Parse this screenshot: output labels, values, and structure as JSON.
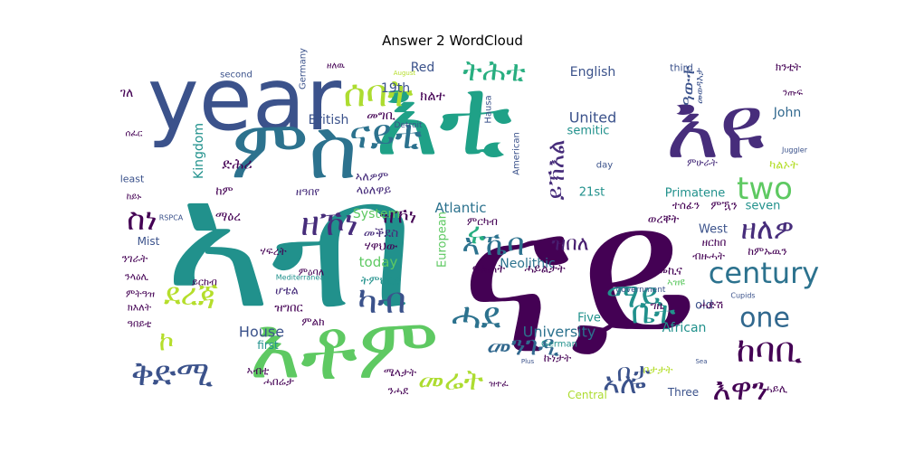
{
  "chart_data": {
    "type": "wordcloud",
    "title": "Answer 2 WordCloud",
    "colormap": "viridis",
    "background": "#ffffff",
    "words": [
      {
        "text": "ናይ",
        "weight": 1.0,
        "color": "#440154"
      },
      {
        "text": "ኣብ",
        "weight": 0.95,
        "color": "#21918c"
      },
      {
        "text": "እቲ",
        "weight": 0.55,
        "color": "#1fa187"
      },
      {
        "text": "year",
        "weight": 0.5,
        "color": "#3b528b"
      },
      {
        "text": "እዩ",
        "weight": 0.45,
        "color": "#472d7b"
      },
      {
        "text": "እቶም",
        "weight": 0.45,
        "color": "#5ec962"
      },
      {
        "text": "ምስ",
        "weight": 0.42,
        "color": "#2c728e"
      },
      {
        "text": "ቅድሚ",
        "weight": 0.22,
        "color": "#3b528b"
      },
      {
        "text": "ሰባት",
        "weight": 0.2,
        "color": "#addc30"
      },
      {
        "text": "ናይቲ",
        "weight": 0.2,
        "color": "#2c728e"
      },
      {
        "text": "ትሕቲ",
        "weight": 0.16,
        "color": "#28ae80"
      },
      {
        "text": "ዘኾነ",
        "weight": 0.16,
        "color": "#472d7b"
      },
      {
        "text": "ስነ",
        "weight": 0.16,
        "color": "#440154"
      },
      {
        "text": "two",
        "weight": 0.18,
        "color": "#5ec962"
      },
      {
        "text": "century",
        "weight": 0.18,
        "color": "#2c728e"
      },
      {
        "text": "ዘለዎ",
        "weight": 0.16,
        "color": "#472d7b"
      },
      {
        "text": "ደረጃ",
        "weight": 0.16,
        "color": "#b5de2b"
      },
      {
        "text": "ካብ",
        "weight": 0.18,
        "color": "#3b528b"
      },
      {
        "text": "ኣሎ",
        "weight": 0.16,
        "color": "#3b528b"
      },
      {
        "text": "ሓደ",
        "weight": 0.18,
        "color": "#2c728e"
      },
      {
        "text": "ማይ",
        "weight": 0.18,
        "color": "#21918c"
      },
      {
        "text": "ከባቢ",
        "weight": 0.17,
        "color": "#440154"
      },
      {
        "text": "እዋን",
        "weight": 0.15,
        "color": "#440154"
      },
      {
        "text": "መሬት",
        "weight": 0.15,
        "color": "#addc30"
      },
      {
        "text": "ቦታ",
        "weight": 0.14,
        "color": "#3b528b"
      },
      {
        "text": "ኣኼባ",
        "weight": 0.15,
        "color": "#2c728e"
      },
      {
        "text": "ቤት",
        "weight": 0.15,
        "color": "#21918c"
      },
      {
        "text": "ሩ",
        "weight": 0.14,
        "color": "#28ae80"
      },
      {
        "text": "one",
        "weight": 0.14,
        "color": "#31688e"
      },
      {
        "text": "መንገዲ",
        "weight": 0.13,
        "color": "#31688e"
      },
      {
        "text": "ኮ",
        "weight": 0.14,
        "color": "#b5de2b"
      },
      {
        "text": "ይኽእል",
        "weight": 0.13,
        "color": "#472d7b"
      },
      {
        "text": "ዓውተ",
        "weight": 0.1,
        "color": "#3b528b"
      },
      {
        "text": "ዝኾነ",
        "weight": 0.12,
        "color": "#440154"
      },
      {
        "text": "ዝበለ",
        "weight": 0.11,
        "color": "#481f70"
      },
      {
        "text": "University",
        "weight": 0.09,
        "color": "#2c728e"
      },
      {
        "text": "United",
        "weight": 0.09,
        "color": "#3b528b"
      },
      {
        "text": "House",
        "weight": 0.09,
        "color": "#3b528b"
      },
      {
        "text": "British",
        "weight": 0.08,
        "color": "#3b528b"
      },
      {
        "text": "Kingdom",
        "weight": 0.08,
        "color": "#21918c"
      },
      {
        "text": "European",
        "weight": 0.07,
        "color": "#5ec962"
      },
      {
        "text": "Atlantic",
        "weight": 0.07,
        "color": "#2c728e"
      },
      {
        "text": "today",
        "weight": 0.08,
        "color": "#5ec962"
      },
      {
        "text": "System",
        "weight": 0.07,
        "color": "#5ec962"
      },
      {
        "text": "Neolithic",
        "weight": 0.07,
        "color": "#2c728e"
      },
      {
        "text": "English",
        "weight": 0.07,
        "color": "#3b528b"
      },
      {
        "text": "semitic",
        "weight": 0.07,
        "color": "#21918c"
      },
      {
        "text": "John",
        "weight": 0.07,
        "color": "#31688e"
      },
      {
        "text": "Primatene",
        "weight": 0.06,
        "color": "#21918c"
      },
      {
        "text": "African",
        "weight": 0.06,
        "color": "#21918c"
      },
      {
        "text": "West",
        "weight": 0.06,
        "color": "#3b528b"
      },
      {
        "text": "seven",
        "weight": 0.06,
        "color": "#21918c"
      },
      {
        "text": "21st",
        "weight": 0.06,
        "color": "#21918c"
      },
      {
        "text": "19th",
        "weight": 0.06,
        "color": "#3b528b"
      },
      {
        "text": "Red",
        "weight": 0.06,
        "color": "#3b528b"
      },
      {
        "text": "Five",
        "weight": 0.06,
        "color": "#21918c"
      },
      {
        "text": "Three",
        "weight": 0.06,
        "color": "#3b528b"
      },
      {
        "text": "Central",
        "weight": 0.06,
        "color": "#addc30"
      },
      {
        "text": "old",
        "weight": 0.06,
        "color": "#3b528b"
      },
      {
        "text": "first",
        "weight": 0.06,
        "color": "#21918c"
      },
      {
        "text": "Mist",
        "weight": 0.06,
        "color": "#3b528b"
      },
      {
        "text": "German",
        "weight": 0.04,
        "color": "#21918c"
      },
      {
        "text": "third",
        "weight": 0.04,
        "color": "#3b528b"
      },
      {
        "text": "second",
        "weight": 0.04,
        "color": "#3b528b"
      },
      {
        "text": "least",
        "weight": 0.04,
        "color": "#3b528b"
      },
      {
        "text": "day",
        "weight": 0.03,
        "color": "#3b528b"
      },
      {
        "text": "Germany",
        "weight": 0.03,
        "color": "#3b528b"
      },
      {
        "text": "Hausa",
        "weight": 0.03,
        "color": "#3b528b"
      },
      {
        "text": "American",
        "weight": 0.03,
        "color": "#3b528b"
      },
      {
        "text": "Detroit",
        "weight": 0.03,
        "color": "#3b528b"
      },
      {
        "text": "government",
        "weight": 0.03,
        "color": "#3b528b"
      },
      {
        "text": "Mediterranean",
        "weight": 0.02,
        "color": "#21918c"
      },
      {
        "text": "RSPCA",
        "weight": 0.02,
        "color": "#3b528b"
      },
      {
        "text": "Juggler",
        "weight": 0.02,
        "color": "#3b528b"
      },
      {
        "text": "Cupids",
        "weight": 0.02,
        "color": "#3b528b"
      },
      {
        "text": "Plus",
        "weight": 0.02,
        "color": "#3b528b"
      },
      {
        "text": "Sea",
        "weight": 0.02,
        "color": "#3b528b"
      },
      {
        "text": "August",
        "weight": 0.02,
        "color": "#b5de2b"
      },
      {
        "text": "ክልተ",
        "weight": 0.07,
        "color": "#440154"
      },
      {
        "text": "መግቢ",
        "weight": 0.07,
        "color": "#440154"
      },
      {
        "text": "ድሕሪ",
        "weight": 0.07,
        "color": "#440154"
      },
      {
        "text": "ከም",
        "weight": 0.06,
        "color": "#440154"
      },
      {
        "text": "ማዕረ",
        "weight": 0.06,
        "color": "#440154"
      },
      {
        "text": "ዘዓበየ",
        "weight": 0.06,
        "color": "#472d7b"
      },
      {
        "text": "ላዕለዋይ",
        "weight": 0.06,
        "color": "#472d7b"
      },
      {
        "text": "ኣለዎም",
        "weight": 0.06,
        "color": "#472d7b"
      },
      {
        "text": "መቕደስ",
        "weight": 0.06,
        "color": "#472d7b"
      },
      {
        "text": "ሃዋህው",
        "weight": 0.06,
        "color": "#440154"
      },
      {
        "text": "ትምህርቲ",
        "weight": 0.06,
        "color": "#21918c"
      },
      {
        "text": "ፍልጠት",
        "weight": 0.06,
        "color": "#440154"
      },
      {
        "text": "ሓይልታት",
        "weight": 0.06,
        "color": "#440154"
      },
      {
        "text": "ምርካብ",
        "weight": 0.05,
        "color": "#440154"
      },
      {
        "text": "ሃፍረት",
        "weight": 0.05,
        "color": "#440154"
      },
      {
        "text": "ሆቴል",
        "weight": 0.05,
        "color": "#472d7b"
      },
      {
        "text": "ዝግበር",
        "weight": 0.05,
        "color": "#440154"
      },
      {
        "text": "ምልክ",
        "weight": 0.05,
        "color": "#440154"
      },
      {
        "text": "ኣብቲ",
        "weight": 0.05,
        "color": "#440154"
      },
      {
        "text": "ሓበሬታ",
        "weight": 0.05,
        "color": "#440154"
      },
      {
        "text": "ሜላታት",
        "weight": 0.05,
        "color": "#440154"
      },
      {
        "text": "ምዕባለ",
        "weight": 0.05,
        "color": "#440154"
      },
      {
        "text": "ምዃን",
        "weight": 0.05,
        "color": "#440154"
      },
      {
        "text": "መኪና",
        "weight": 0.05,
        "color": "#440154"
      },
      {
        "text": "ኣዝዩ",
        "weight": 0.05,
        "color": "#5ec962"
      },
      {
        "text": "ወረቐት",
        "weight": 0.05,
        "color": "#440154"
      },
      {
        "text": "ዘርከበ",
        "weight": 0.05,
        "color": "#440154"
      },
      {
        "text": "ብዙሓት",
        "weight": 0.05,
        "color": "#440154"
      },
      {
        "text": "ከምኡዉን",
        "weight": 0.05,
        "color": "#440154"
      },
      {
        "text": "ሓድሽ",
        "weight": 0.05,
        "color": "#440154"
      },
      {
        "text": "ሓይሊ",
        "weight": 0.05,
        "color": "#440154"
      },
      {
        "text": "ቦታታት",
        "weight": 0.05,
        "color": "#b5de2b"
      },
      {
        "text": "ኩነታት",
        "weight": 0.05,
        "color": "#440154"
      },
      {
        "text": "ካልኦት",
        "weight": 0.05,
        "color": "#b5de2b"
      },
      {
        "text": "ተሰፊን",
        "weight": 0.05,
        "color": "#440154"
      },
      {
        "text": "ምሁራት",
        "weight": 0.05,
        "color": "#472d7b"
      },
      {
        "text": "ንጡፍ",
        "weight": 0.05,
        "color": "#440154"
      },
      {
        "text": "ክንቲት",
        "weight": 0.05,
        "color": "#440154"
      },
      {
        "text": "መወዳእታ",
        "weight": 0.04,
        "color": "#3b528b"
      },
      {
        "text": "ንሓደ",
        "weight": 0.04,
        "color": "#440154"
      },
      {
        "text": "ግዜ",
        "weight": 0.04,
        "color": "#440154"
      },
      {
        "text": "ገለ",
        "weight": 0.05,
        "color": "#440154"
      },
      {
        "text": "ንገራት",
        "weight": 0.05,
        "color": "#440154"
      },
      {
        "text": "ንላዕሊ",
        "weight": 0.05,
        "color": "#440154"
      },
      {
        "text": "ምትዓዝ",
        "weight": 0.05,
        "color": "#440154"
      },
      {
        "text": "ክእለት",
        "weight": 0.05,
        "color": "#440154"
      },
      {
        "text": "ዓበይቲ",
        "weight": 0.05,
        "color": "#440154"
      },
      {
        "text": "ይርከብ",
        "weight": 0.05,
        "color": "#440154"
      },
      {
        "text": "ከይኑ",
        "weight": 0.05,
        "color": "#440154"
      },
      {
        "text": "ዝተፈ",
        "weight": 0.04,
        "color": "#440154"
      },
      {
        "text": "ሰፈር",
        "weight": 0.04,
        "color": "#440154"
      },
      {
        "text": "ዘለዉ",
        "weight": 0.04,
        "color": "#440154"
      }
    ]
  }
}
